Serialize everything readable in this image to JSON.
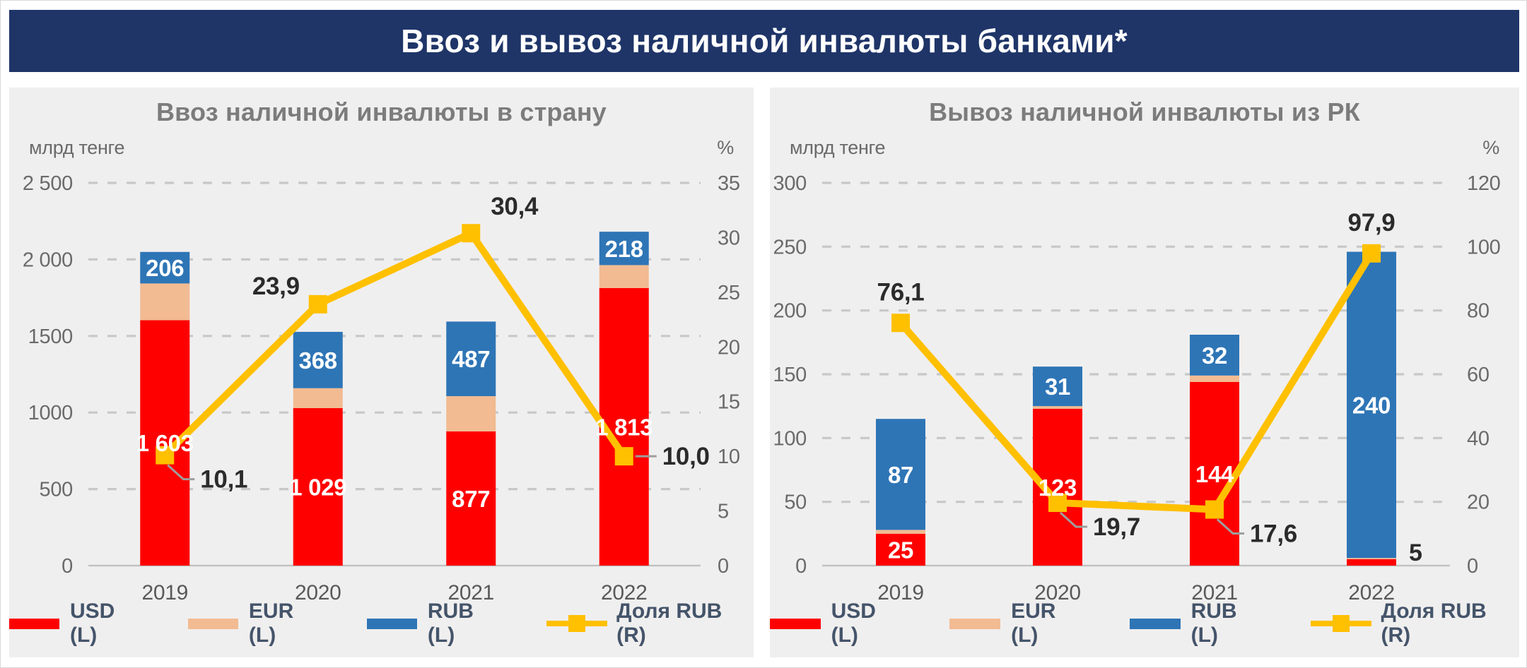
{
  "banner": {
    "title": "Ввоз и вывоз наличной инвалюты банками*"
  },
  "colors": {
    "banner_bg": "#1F3568",
    "panel_bg": "#F0EFEF",
    "usd": "#FF0000",
    "eur": "#F2BB92",
    "rub": "#2E75B6",
    "share": "#FFC000",
    "grid": "#C8C8C8",
    "axis_line": "#C2C2C2",
    "tick_text": "#6A6A6A",
    "year_text": "#595959",
    "bar_label": "#FFFFFF",
    "line_label": "#2B2B2B",
    "legend_text": "#44546A",
    "leader": "#9E9E9E"
  },
  "legend": {
    "items": [
      {
        "label": "USD (L)",
        "color_key": "usd",
        "type": "box"
      },
      {
        "label": "EUR (L)",
        "color_key": "eur",
        "type": "box"
      },
      {
        "label": "RUB (L)",
        "color_key": "rub",
        "type": "box"
      },
      {
        "label": "Доля RUB (R)",
        "color_key": "share",
        "type": "line"
      }
    ]
  },
  "chart_data": [
    {
      "id": "import",
      "type": "bar",
      "title": "Ввоз наличной инвалюты в страну",
      "categories": [
        "2019",
        "2020",
        "2021",
        "2022"
      ],
      "left_axis": {
        "unit": "млрд тенге",
        "min": 0,
        "max": 2500,
        "ticks": [
          {
            "value": 2500,
            "label": "2 500"
          },
          {
            "value": 2000,
            "label": "2 000"
          },
          {
            "value": 1500,
            "label": "1500"
          },
          {
            "value": 1000,
            "label": "1000"
          },
          {
            "value": 500,
            "label": "500"
          },
          {
            "value": 0,
            "label": "0"
          }
        ]
      },
      "right_axis": {
        "unit": "%",
        "min": 0,
        "max": 35,
        "ticks": [
          {
            "value": 35,
            "label": "35"
          },
          {
            "value": 30,
            "label": "30"
          },
          {
            "value": 25,
            "label": "25"
          },
          {
            "value": 20,
            "label": "20"
          },
          {
            "value": 15,
            "label": "15"
          },
          {
            "value": 10,
            "label": "10"
          },
          {
            "value": 5,
            "label": "5"
          },
          {
            "value": 0,
            "label": "0"
          }
        ]
      },
      "series": [
        {
          "name": "USD (L)",
          "color_key": "usd",
          "values": [
            1603,
            1029,
            877,
            1813
          ],
          "labels": [
            "1 603",
            "1 029",
            "877",
            "1 813"
          ],
          "label_outside": [
            false,
            false,
            false,
            false
          ]
        },
        {
          "name": "EUR (L)",
          "color_key": "eur",
          "values": [
            240,
            130,
            230,
            150
          ],
          "labels": [
            "",
            "",
            "",
            ""
          ],
          "label_outside": [
            false,
            false,
            false,
            false
          ]
        },
        {
          "name": "RUB (L)",
          "color_key": "rub",
          "values": [
            206,
            368,
            487,
            218
          ],
          "labels": [
            "206",
            "368",
            "487",
            "218"
          ],
          "label_outside": [
            false,
            false,
            false,
            false
          ]
        }
      ],
      "line": {
        "name": "Доля RUB (R)",
        "values": [
          10.1,
          23.9,
          30.4,
          10.0
        ],
        "labels": [
          "10,1",
          "23,9",
          "30,4",
          "10,0"
        ],
        "label_pos": [
          "leader-below-right",
          "above-left",
          "above-right",
          "leader-right"
        ]
      }
    },
    {
      "id": "export",
      "type": "bar",
      "title": "Вывоз наличной инвалюты из РК",
      "categories": [
        "2019",
        "2020",
        "2021",
        "2022"
      ],
      "left_axis": {
        "unit": "млрд тенге",
        "min": 0,
        "max": 300,
        "ticks": [
          {
            "value": 300,
            "label": "300"
          },
          {
            "value": 250,
            "label": "250"
          },
          {
            "value": 200,
            "label": "200"
          },
          {
            "value": 150,
            "label": "150"
          },
          {
            "value": 100,
            "label": "100"
          },
          {
            "value": 50,
            "label": "50"
          },
          {
            "value": 0,
            "label": "0"
          }
        ]
      },
      "right_axis": {
        "unit": "%",
        "min": 0,
        "max": 120,
        "ticks": [
          {
            "value": 120,
            "label": "120"
          },
          {
            "value": 100,
            "label": "100"
          },
          {
            "value": 80,
            "label": "80"
          },
          {
            "value": 60,
            "label": "60"
          },
          {
            "value": 40,
            "label": "40"
          },
          {
            "value": 20,
            "label": "20"
          },
          {
            "value": 0,
            "label": "0"
          }
        ]
      },
      "series": [
        {
          "name": "USD (L)",
          "color_key": "usd",
          "values": [
            25,
            123,
            144,
            5
          ],
          "labels": [
            "25",
            "123",
            "144",
            "5"
          ],
          "label_outside": [
            false,
            false,
            false,
            true
          ]
        },
        {
          "name": "EUR (L)",
          "color_key": "eur",
          "values": [
            3,
            2,
            5,
            1
          ],
          "labels": [
            "",
            "",
            "",
            ""
          ],
          "label_outside": [
            false,
            false,
            false,
            false
          ]
        },
        {
          "name": "RUB (L)",
          "color_key": "rub",
          "values": [
            87,
            31,
            32,
            240
          ],
          "labels": [
            "87",
            "31",
            "32",
            "240"
          ],
          "label_outside": [
            false,
            false,
            false,
            false
          ]
        }
      ],
      "line": {
        "name": "Доля RUB (R)",
        "values": [
          76.1,
          19.7,
          17.6,
          97.9
        ],
        "labels": [
          "76,1",
          "19,7",
          "17,6",
          "97,9"
        ],
        "label_pos": [
          "above",
          "leader-below-right",
          "leader-below-right",
          "above"
        ]
      }
    }
  ]
}
